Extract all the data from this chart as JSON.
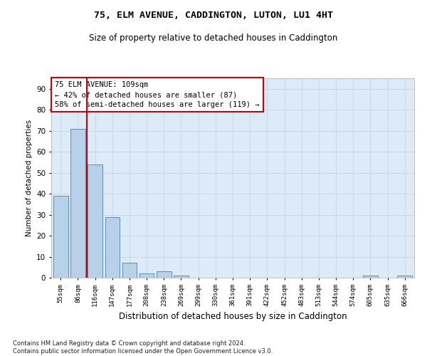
{
  "title1": "75, ELM AVENUE, CADDINGTON, LUTON, LU1 4HT",
  "title2": "Size of property relative to detached houses in Caddington",
  "xlabel": "Distribution of detached houses by size in Caddington",
  "ylabel": "Number of detached properties",
  "categories": [
    "55sqm",
    "86sqm",
    "116sqm",
    "147sqm",
    "177sqm",
    "208sqm",
    "238sqm",
    "269sqm",
    "299sqm",
    "330sqm",
    "361sqm",
    "391sqm",
    "422sqm",
    "452sqm",
    "483sqm",
    "513sqm",
    "544sqm",
    "574sqm",
    "605sqm",
    "635sqm",
    "666sqm"
  ],
  "values": [
    39,
    71,
    54,
    29,
    7,
    2,
    3,
    1,
    0,
    0,
    0,
    0,
    0,
    0,
    0,
    0,
    0,
    0,
    1,
    0,
    1
  ],
  "bar_color": "#b8d0e8",
  "bar_edge_color": "#5a8fc0",
  "vline_x": 1.5,
  "vline_color": "#cc0000",
  "annotation_text": "75 ELM AVENUE: 109sqm\n← 42% of detached houses are smaller (87)\n58% of semi-detached houses are larger (119) →",
  "annotation_box_color": "#cc0000",
  "ylim": [
    0,
    95
  ],
  "yticks": [
    0,
    10,
    20,
    30,
    40,
    50,
    60,
    70,
    80,
    90
  ],
  "footnote": "Contains HM Land Registry data © Crown copyright and database right 2024.\nContains public sector information licensed under the Open Government Licence v3.0.",
  "grid_color": "#c8d8e8",
  "background_color": "#ddeaf7",
  "fig_width": 6.0,
  "fig_height": 5.0,
  "dpi": 100
}
